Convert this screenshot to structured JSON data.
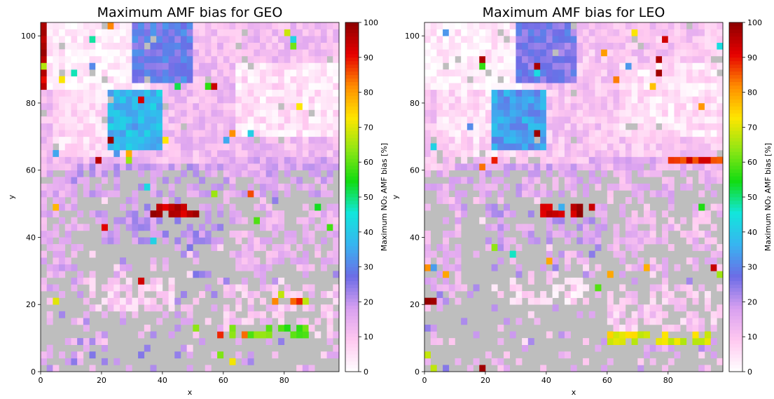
{
  "chart_data": [
    {
      "type": "heatmap",
      "title": "Maximum AMF bias for GEO",
      "xlabel": "x",
      "ylabel": "y",
      "xlim": [
        0,
        98
      ],
      "ylim": [
        0,
        104
      ],
      "xticks": [
        0,
        20,
        40,
        60,
        80
      ],
      "yticks": [
        0,
        20,
        40,
        60,
        80,
        100
      ],
      "colorbar": {
        "label": "Maximum NO₂ AMF bias [%]",
        "range": [
          0,
          100
        ],
        "ticks": [
          0,
          10,
          20,
          30,
          40,
          50,
          60,
          70,
          80,
          90,
          100
        ]
      },
      "grid": false,
      "missing_color": "#bebebe",
      "cmap": [
        "#ffffff",
        "#ffc8f0",
        "#d8a0f0",
        "#6c6ce6",
        "#38b4f0",
        "#12e6dc",
        "#12dc12",
        "#90e614",
        "#ffe600",
        "#ff8c00",
        "#e60000",
        "#8c0000"
      ],
      "field": {
        "background": 8,
        "regions": [
          {
            "x": [
              0,
              98
            ],
            "y": [
              0,
              104
            ],
            "value": null
          },
          {
            "x": [
              0,
              98
            ],
            "y": [
              60,
              104
            ],
            "value": 12
          },
          {
            "x": [
              0,
              36
            ],
            "y": [
              84,
              104
            ],
            "value": 3
          },
          {
            "x": [
              5,
              30
            ],
            "y": [
              64,
              84
            ],
            "value": 6
          },
          {
            "x": [
              64,
              98
            ],
            "y": [
              70,
              92
            ],
            "value": 5
          },
          {
            "x": [
              30,
              50
            ],
            "y": [
              86,
              104
            ],
            "value": 28
          },
          {
            "x": [
              22,
              40
            ],
            "y": [
              66,
              84
            ],
            "value": 38
          },
          {
            "x": [
              0,
              12
            ],
            "y": [
              25,
              60
            ],
            "value": 15
          },
          {
            "x": [
              10,
              60
            ],
            "y": [
              52,
              62
            ],
            "value": 18
          },
          {
            "x": [
              55,
              98
            ],
            "y": [
              52,
              64
            ],
            "value": 16
          },
          {
            "x": [
              62,
              98
            ],
            "y": [
              30,
              50
            ],
            "value": 14
          },
          {
            "x": [
              20,
              60
            ],
            "y": [
              38,
              50
            ],
            "value": 20
          },
          {
            "x": [
              15,
              45
            ],
            "y": [
              18,
              28
            ],
            "value": 8
          },
          {
            "x": [
              60,
              98
            ],
            "y": [
              10,
              26
            ],
            "value": 10
          },
          {
            "x": [
              62,
              88
            ],
            "y": [
              11,
              14
            ],
            "value": 60
          },
          {
            "x": [
              36,
              52
            ],
            "y": [
              47,
              50
            ],
            "value": 95
          },
          {
            "x": [
              0,
              2
            ],
            "y": [
              85,
              104
            ],
            "value": 95
          },
          {
            "x": [
              75,
              95
            ],
            "y": [
              20,
              22
            ],
            "value": 85
          }
        ],
        "coverage": 0.6
      }
    },
    {
      "type": "heatmap",
      "title": "Maximum AMF bias for LEO",
      "xlabel": "x",
      "ylabel": "y",
      "xlim": [
        0,
        98
      ],
      "ylim": [
        0,
        104
      ],
      "xticks": [
        0,
        20,
        40,
        60,
        80
      ],
      "yticks": [
        0,
        20,
        40,
        60,
        80,
        100
      ],
      "colorbar": {
        "label": "Maximum NO₂ AMF bias [%]",
        "range": [
          0,
          100
        ],
        "ticks": [
          0,
          10,
          20,
          30,
          40,
          50,
          60,
          70,
          80,
          90,
          100
        ]
      },
      "grid": false,
      "missing_color": "#bebebe",
      "cmap": [
        "#ffffff",
        "#ffc8f0",
        "#d8a0f0",
        "#6c6ce6",
        "#38b4f0",
        "#12e6dc",
        "#12dc12",
        "#90e614",
        "#ffe600",
        "#ff8c00",
        "#e60000",
        "#8c0000"
      ],
      "field": {
        "background": 8,
        "regions": [
          {
            "x": [
              0,
              98
            ],
            "y": [
              0,
              104
            ],
            "value": null
          },
          {
            "x": [
              0,
              98
            ],
            "y": [
              60,
              104
            ],
            "value": 10
          },
          {
            "x": [
              0,
              36
            ],
            "y": [
              84,
              104
            ],
            "value": 3
          },
          {
            "x": [
              5,
              30
            ],
            "y": [
              64,
              84
            ],
            "value": 6
          },
          {
            "x": [
              64,
              98
            ],
            "y": [
              70,
              92
            ],
            "value": 5
          },
          {
            "x": [
              30,
              50
            ],
            "y": [
              86,
              104
            ],
            "value": 26
          },
          {
            "x": [
              22,
              40
            ],
            "y": [
              66,
              84
            ],
            "value": 34
          },
          {
            "x": [
              0,
              12
            ],
            "y": [
              25,
              60
            ],
            "value": 14
          },
          {
            "x": [
              10,
              60
            ],
            "y": [
              52,
              62
            ],
            "value": 16
          },
          {
            "x": [
              55,
              98
            ],
            "y": [
              52,
              64
            ],
            "value": 14
          },
          {
            "x": [
              62,
              98
            ],
            "y": [
              30,
              50
            ],
            "value": 12
          },
          {
            "x": [
              20,
              60
            ],
            "y": [
              38,
              50
            ],
            "value": 18
          },
          {
            "x": [
              25,
              55
            ],
            "y": [
              20,
              28
            ],
            "value": 6
          },
          {
            "x": [
              60,
              98
            ],
            "y": [
              10,
              26
            ],
            "value": 9
          },
          {
            "x": [
              60,
              95
            ],
            "y": [
              9,
              12
            ],
            "value": 70
          },
          {
            "x": [
              36,
              56
            ],
            "y": [
              47,
              50
            ],
            "value": 95
          },
          {
            "x": [
              0,
              5
            ],
            "y": [
              20,
              22
            ],
            "value": 95
          },
          {
            "x": [
              80,
              98
            ],
            "y": [
              62,
              64
            ],
            "value": 90
          }
        ],
        "coverage": 0.55
      }
    }
  ]
}
